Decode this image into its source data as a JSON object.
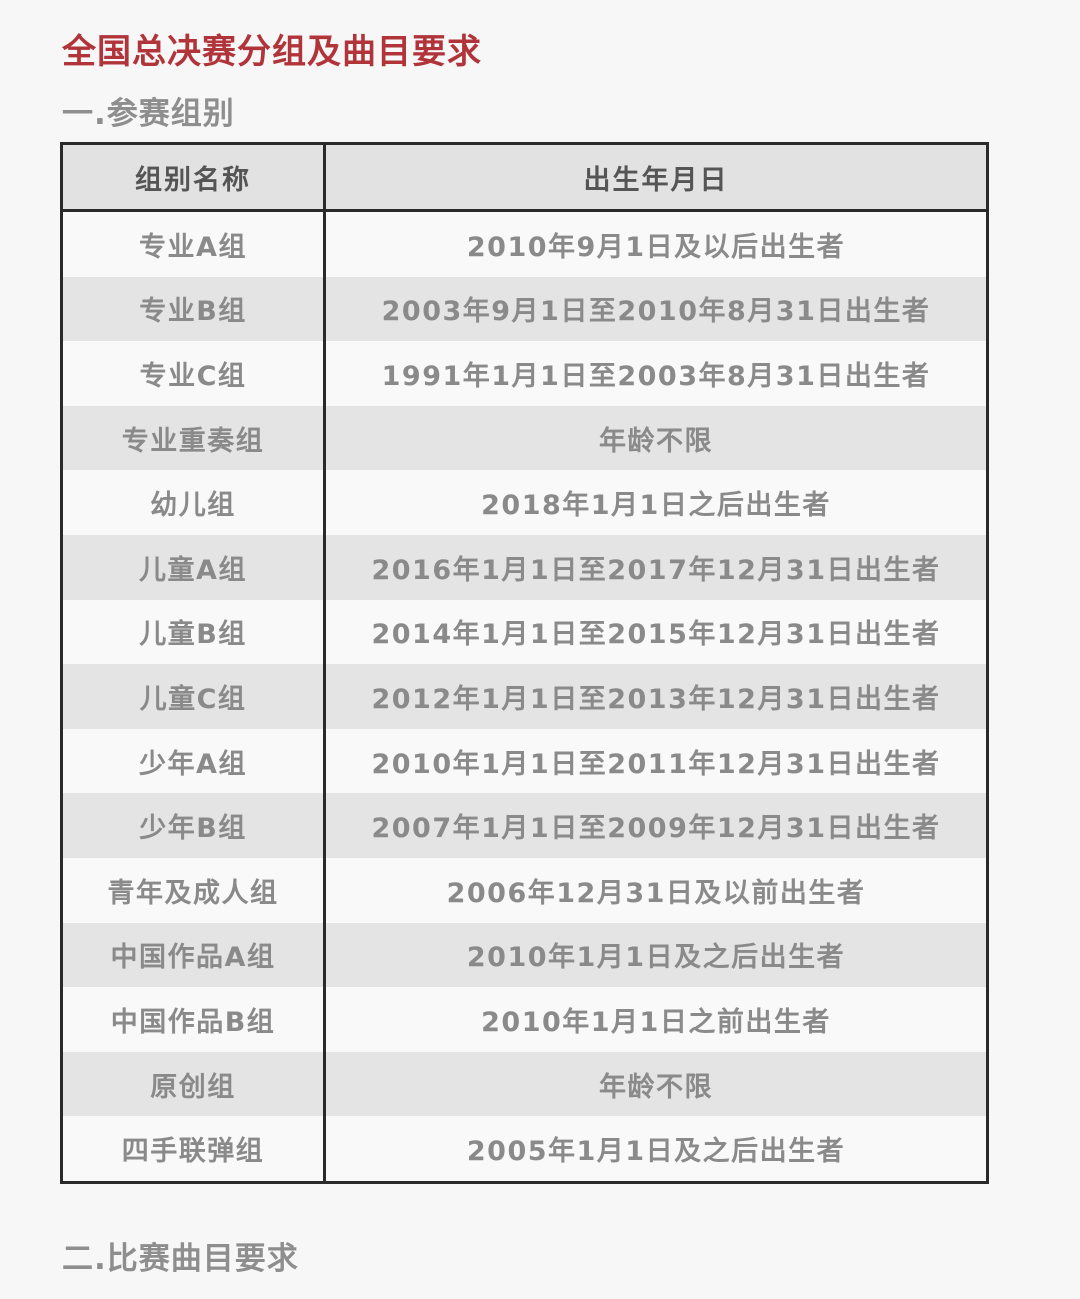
{
  "title": "全国总决赛分组及曲目要求",
  "section1": "一.参赛组别",
  "section2": "二.比赛曲目要求",
  "table": {
    "headers": [
      "组别名称",
      "出生年月日"
    ],
    "rows": [
      [
        "专业A组",
        "2010年9月1日及以后出生者"
      ],
      [
        "专业B组",
        "2003年9月1日至2010年8月31日出生者"
      ],
      [
        "专业C组",
        "1991年1月1日至2003年8月31日出生者"
      ],
      [
        "专业重奏组",
        "年龄不限"
      ],
      [
        "幼儿组",
        "2018年1月1日之后出生者"
      ],
      [
        "儿童A组",
        "2016年1月1日至2017年12月31日出生者"
      ],
      [
        "儿童B组",
        "2014年1月1日至2015年12月31日出生者"
      ],
      [
        "儿童C组",
        "2012年1月1日至2013年12月31日出生者"
      ],
      [
        "少年A组",
        "2010年1月1日至2011年12月31日出生者"
      ],
      [
        "少年B组",
        "2007年1月1日至2009年12月31日出生者"
      ],
      [
        "青年及成人组",
        "2006年12月31日及以前出生者"
      ],
      [
        "中国作品A组",
        "2010年1月1日及之后出生者"
      ],
      [
        "中国作品B组",
        "2010年1月1日之前出生者"
      ],
      [
        "原创组",
        "年龄不限"
      ],
      [
        "四手联弹组",
        "2005年1月1日及之后出生者"
      ]
    ]
  },
  "colors": {
    "title": "#b0343a",
    "heading": "#8e8e8e",
    "header_bg": "#e2e2e2",
    "stripe": "#e4e4e4"
  }
}
